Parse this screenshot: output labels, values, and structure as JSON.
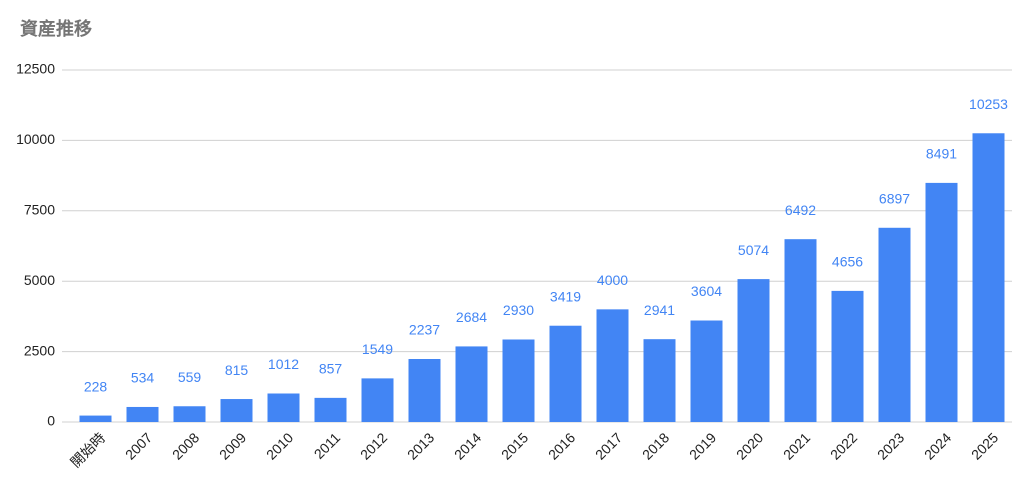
{
  "chart_data": {
    "type": "bar",
    "title": "資産推移",
    "categories": [
      "開始時",
      "2007",
      "2008",
      "2009",
      "2010",
      "2011",
      "2012",
      "2013",
      "2014",
      "2015",
      "2016",
      "2017",
      "2018",
      "2019",
      "2020",
      "2021",
      "2022",
      "2023",
      "2024",
      "2025"
    ],
    "values": [
      228,
      534,
      559,
      815,
      1012,
      857,
      1549,
      2237,
      2684,
      2930,
      3419,
      4000,
      2941,
      3604,
      5074,
      6492,
      4656,
      6897,
      8491,
      10253
    ],
    "color": "#4285f4",
    "ylim": [
      0,
      12500
    ],
    "yticks": [
      0,
      2500,
      5000,
      7500,
      10000,
      12500
    ],
    "grid": true
  }
}
